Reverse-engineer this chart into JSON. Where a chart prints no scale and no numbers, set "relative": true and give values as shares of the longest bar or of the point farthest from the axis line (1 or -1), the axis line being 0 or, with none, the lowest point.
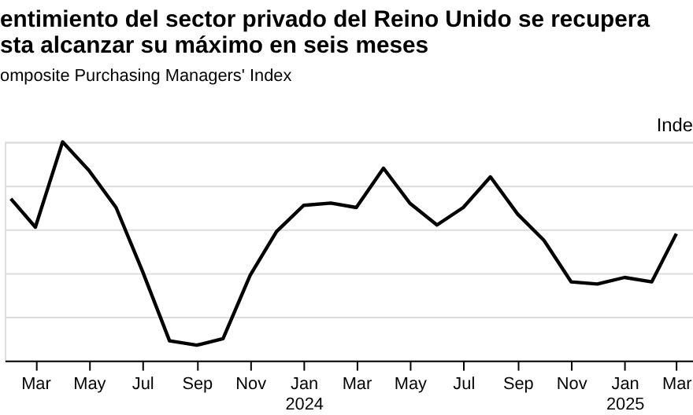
{
  "chart_data": {
    "type": "line",
    "title": "entimiento del sector privado del Reino Unido se recupera\nsta alcanzar su máximo en seis meses",
    "subtitle": "omposite Purchasing Managers' Index",
    "ylabel": "Inde",
    "relative": true,
    "grid": "y",
    "legend": false,
    "marker": "none",
    "line_style": "solid",
    "x": [
      "2023-02",
      "2023-03",
      "2023-04",
      "2023-05",
      "2023-06",
      "2023-07",
      "2023-08",
      "2023-09",
      "2023-10",
      "2023-11",
      "2023-12",
      "2024-01",
      "2024-02",
      "2024-03",
      "2024-04",
      "2024-05",
      "2024-06",
      "2024-07",
      "2024-08",
      "2024-09",
      "2024-10",
      "2024-11",
      "2024-12",
      "2025-01",
      "2025-02",
      "2025-03"
    ],
    "xlim": [
      "2023-01-25",
      "2025-03-20"
    ],
    "xticks": [
      {
        "value": "2023-03",
        "label": "Mar"
      },
      {
        "value": "2023-05",
        "label": "May"
      },
      {
        "value": "2023-07",
        "label": "Jul"
      },
      {
        "value": "2023-09",
        "label": "Sep"
      },
      {
        "value": "2023-11",
        "label": "Nov"
      },
      {
        "value": "2024-01",
        "label": "Jan\n2024"
      },
      {
        "value": "2024-03",
        "label": "Mar"
      },
      {
        "value": "2024-05",
        "label": "May"
      },
      {
        "value": "2024-07",
        "label": "Jul"
      },
      {
        "value": "2024-09",
        "label": "Sep"
      },
      {
        "value": "2024-11",
        "label": "Nov"
      },
      {
        "value": "2025-01",
        "label": "Jan\n2025"
      },
      {
        "value": "2025-03",
        "label": "Mar"
      }
    ],
    "series": [
      {
        "color": "#000000",
        "values": [
          0.74,
          0.61,
          1,
          0.87,
          0.7,
          0.41,
          0.09,
          0.07,
          0.1,
          0.39,
          0.59,
          0.71,
          0.72,
          0.7,
          0.88,
          0.72,
          0.62,
          0.7,
          0.84,
          0.67,
          0.55,
          0.36,
          0.35,
          0.38,
          0.36,
          0.58
        ]
      }
    ]
  }
}
